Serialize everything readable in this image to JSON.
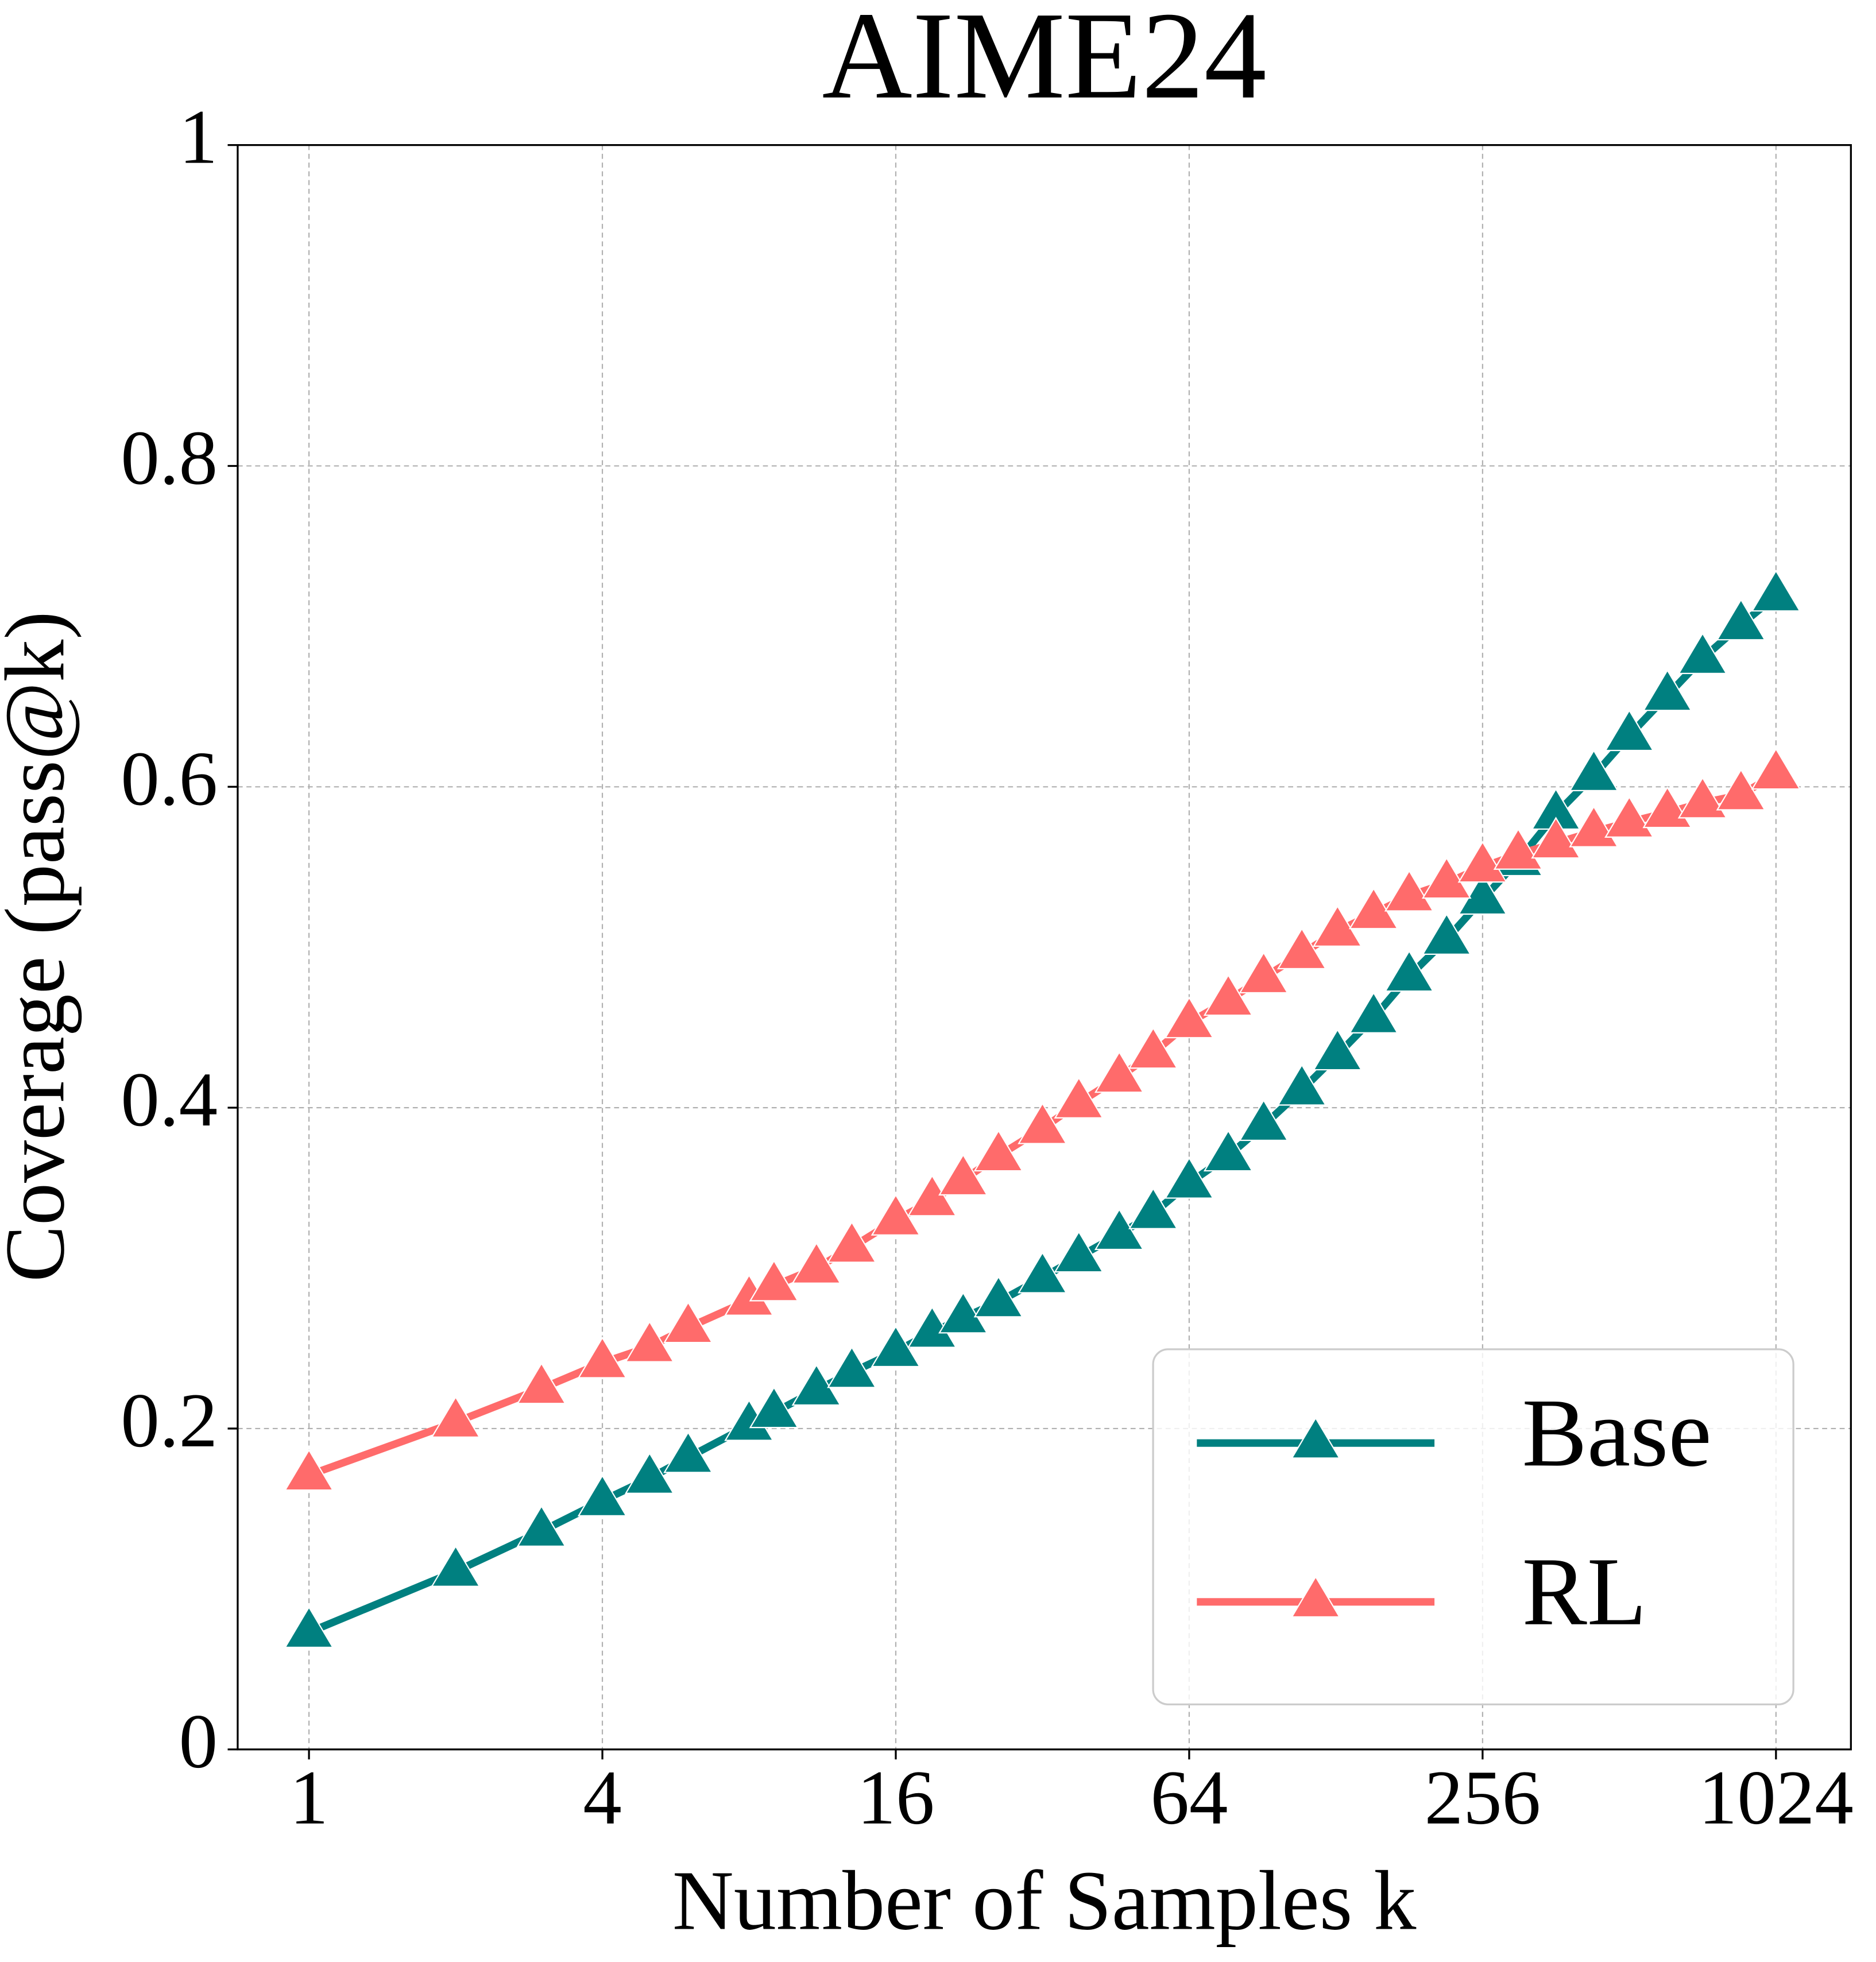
{
  "chart_data": {
    "type": "line",
    "title": "AIME24",
    "xlabel": "Number of Samples k",
    "ylabel": "Coverage (pass@k)",
    "x": [
      1,
      2,
      3,
      4,
      5,
      6,
      8,
      9,
      11,
      13,
      16,
      19,
      22,
      26,
      32,
      38,
      46,
      54,
      64,
      77,
      91,
      109,
      129,
      153,
      181,
      216,
      256,
      303,
      362,
      433,
      512,
      613,
      724,
      868,
      1024
    ],
    "series": [
      {
        "name": "Base",
        "color": "#008080",
        "values": [
          0.073,
          0.111,
          0.136,
          0.155,
          0.169,
          0.182,
          0.202,
          0.21,
          0.224,
          0.235,
          0.248,
          0.26,
          0.269,
          0.279,
          0.294,
          0.307,
          0.321,
          0.334,
          0.353,
          0.37,
          0.389,
          0.411,
          0.433,
          0.456,
          0.482,
          0.505,
          0.53,
          0.554,
          0.583,
          0.607,
          0.632,
          0.657,
          0.68,
          0.701,
          0.719
        ]
      },
      {
        "name": "RL",
        "color": "#ff6b6b",
        "values": [
          0.171,
          0.204,
          0.225,
          0.241,
          0.251,
          0.263,
          0.28,
          0.289,
          0.3,
          0.313,
          0.33,
          0.342,
          0.355,
          0.37,
          0.387,
          0.403,
          0.419,
          0.434,
          0.453,
          0.467,
          0.481,
          0.496,
          0.51,
          0.521,
          0.532,
          0.54,
          0.55,
          0.558,
          0.565,
          0.572,
          0.578,
          0.584,
          0.59,
          0.595,
          0.608
        ]
      }
    ],
    "xscale": "log",
    "xlim": [
      0.714,
      1459
    ],
    "xticks": [
      1,
      4,
      16,
      64,
      256,
      1024
    ],
    "ylim": [
      0,
      1
    ],
    "yticks": [
      0,
      0.2,
      0.4,
      0.6,
      0.8,
      1
    ],
    "grid": true,
    "legend": "lower right",
    "marker": "triangle"
  }
}
